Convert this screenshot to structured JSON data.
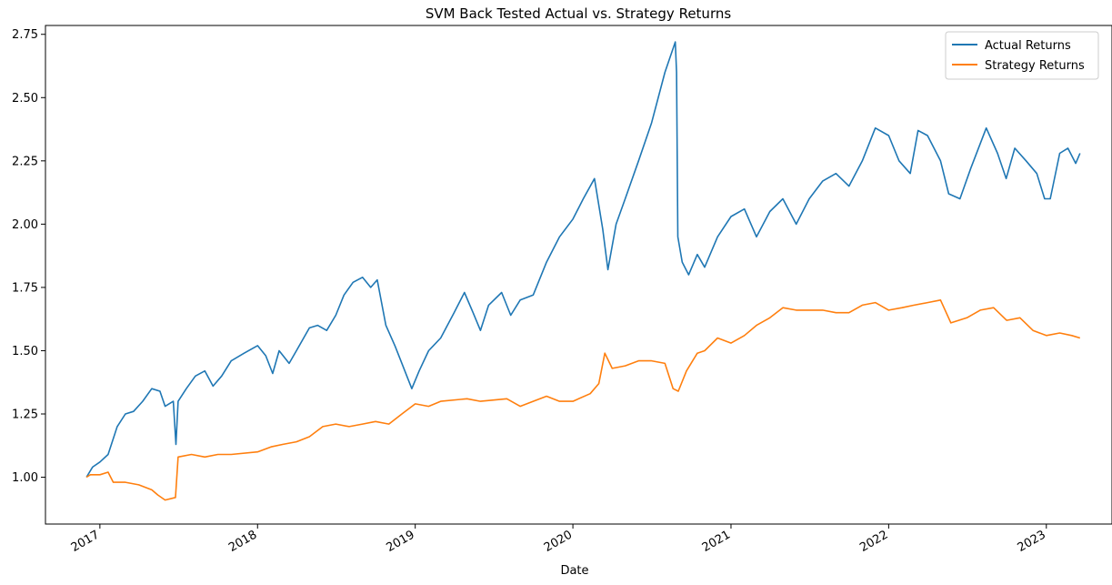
{
  "chart_data": {
    "type": "line",
    "title": "SVM Back Tested Actual vs. Strategy Returns",
    "xlabel": "Date",
    "ylabel": "",
    "xlim": [
      "2016-08-28",
      "2023-06-02"
    ],
    "ylim": [
      0.815,
      2.785
    ],
    "x_tick_labels": [
      "2017",
      "2018",
      "2019",
      "2020",
      "2021",
      "2022",
      "2023"
    ],
    "x_tick_dates": [
      "2017-01-01",
      "2018-01-01",
      "2019-01-01",
      "2020-01-01",
      "2021-01-01",
      "2022-01-01",
      "2023-01-01"
    ],
    "y_ticks": [
      1.0,
      1.25,
      1.5,
      1.75,
      2.0,
      2.25,
      2.5,
      2.75
    ],
    "y_tick_labels": [
      "1.00",
      "1.25",
      "1.50",
      "1.75",
      "2.00",
      "2.25",
      "2.50",
      "2.75"
    ],
    "grid": false,
    "legend_position": "top-right",
    "colors": {
      "actual": "#1f77b4",
      "strategy": "#ff7f0e"
    },
    "series": [
      {
        "name": "Actual Returns",
        "points": [
          [
            "2016-12-01",
            1.0
          ],
          [
            "2016-12-15",
            1.04
          ],
          [
            "2017-01-01",
            1.06
          ],
          [
            "2017-01-20",
            1.09
          ],
          [
            "2017-02-10",
            1.2
          ],
          [
            "2017-03-01",
            1.25
          ],
          [
            "2017-03-20",
            1.26
          ],
          [
            "2017-04-10",
            1.3
          ],
          [
            "2017-05-01",
            1.35
          ],
          [
            "2017-05-20",
            1.34
          ],
          [
            "2017-06-01",
            1.28
          ],
          [
            "2017-06-20",
            1.3
          ],
          [
            "2017-06-26",
            1.13
          ],
          [
            "2017-07-01",
            1.3
          ],
          [
            "2017-07-20",
            1.35
          ],
          [
            "2017-08-10",
            1.4
          ],
          [
            "2017-09-01",
            1.42
          ],
          [
            "2017-09-20",
            1.36
          ],
          [
            "2017-10-10",
            1.4
          ],
          [
            "2017-11-01",
            1.46
          ],
          [
            "2017-12-01",
            1.49
          ],
          [
            "2018-01-01",
            1.52
          ],
          [
            "2018-01-20",
            1.48
          ],
          [
            "2018-02-05",
            1.41
          ],
          [
            "2018-02-20",
            1.5
          ],
          [
            "2018-03-15",
            1.45
          ],
          [
            "2018-04-01",
            1.5
          ],
          [
            "2018-05-01",
            1.59
          ],
          [
            "2018-05-20",
            1.6
          ],
          [
            "2018-06-10",
            1.58
          ],
          [
            "2018-07-01",
            1.64
          ],
          [
            "2018-07-20",
            1.72
          ],
          [
            "2018-08-10",
            1.77
          ],
          [
            "2018-09-01",
            1.79
          ],
          [
            "2018-09-20",
            1.75
          ],
          [
            "2018-10-05",
            1.78
          ],
          [
            "2018-10-25",
            1.6
          ],
          [
            "2018-11-15",
            1.52
          ],
          [
            "2018-12-01",
            1.45
          ],
          [
            "2018-12-24",
            1.35
          ],
          [
            "2019-01-10",
            1.42
          ],
          [
            "2019-02-01",
            1.5
          ],
          [
            "2019-03-01",
            1.55
          ],
          [
            "2019-04-01",
            1.65
          ],
          [
            "2019-04-25",
            1.73
          ],
          [
            "2019-05-15",
            1.65
          ],
          [
            "2019-06-01",
            1.58
          ],
          [
            "2019-06-20",
            1.68
          ],
          [
            "2019-07-20",
            1.73
          ],
          [
            "2019-08-10",
            1.64
          ],
          [
            "2019-09-01",
            1.7
          ],
          [
            "2019-10-01",
            1.72
          ],
          [
            "2019-11-01",
            1.85
          ],
          [
            "2019-12-01",
            1.95
          ],
          [
            "2020-01-01",
            2.02
          ],
          [
            "2020-01-25",
            2.1
          ],
          [
            "2020-02-20",
            2.18
          ],
          [
            "2020-03-10",
            1.98
          ],
          [
            "2020-03-22",
            1.82
          ],
          [
            "2020-04-10",
            2.0
          ],
          [
            "2020-05-01",
            2.1
          ],
          [
            "2020-06-01",
            2.25
          ],
          [
            "2020-07-01",
            2.4
          ],
          [
            "2020-08-01",
            2.6
          ],
          [
            "2020-08-25",
            2.72
          ],
          [
            "2020-08-28",
            2.6
          ],
          [
            "2020-08-31",
            1.95
          ],
          [
            "2020-09-10",
            1.85
          ],
          [
            "2020-09-25",
            1.8
          ],
          [
            "2020-10-15",
            1.88
          ],
          [
            "2020-11-01",
            1.83
          ],
          [
            "2020-12-01",
            1.95
          ],
          [
            "2021-01-01",
            2.03
          ],
          [
            "2021-02-01",
            2.06
          ],
          [
            "2021-03-01",
            1.95
          ],
          [
            "2021-04-01",
            2.05
          ],
          [
            "2021-05-01",
            2.1
          ],
          [
            "2021-06-01",
            2.0
          ],
          [
            "2021-07-01",
            2.1
          ],
          [
            "2021-08-01",
            2.17
          ],
          [
            "2021-09-01",
            2.2
          ],
          [
            "2021-10-01",
            2.15
          ],
          [
            "2021-11-01",
            2.25
          ],
          [
            "2021-12-01",
            2.38
          ],
          [
            "2022-01-01",
            2.35
          ],
          [
            "2022-01-25",
            2.25
          ],
          [
            "2022-02-20",
            2.2
          ],
          [
            "2022-03-10",
            2.37
          ],
          [
            "2022-04-01",
            2.35
          ],
          [
            "2022-05-01",
            2.25
          ],
          [
            "2022-05-20",
            2.12
          ],
          [
            "2022-06-15",
            2.1
          ],
          [
            "2022-07-10",
            2.22
          ],
          [
            "2022-08-15",
            2.38
          ],
          [
            "2022-09-10",
            2.28
          ],
          [
            "2022-09-30",
            2.18
          ],
          [
            "2022-10-20",
            2.3
          ],
          [
            "2022-11-15",
            2.25
          ],
          [
            "2022-12-10",
            2.2
          ],
          [
            "2022-12-28",
            2.1
          ],
          [
            "2023-01-10",
            2.1
          ],
          [
            "2023-02-01",
            2.28
          ],
          [
            "2023-02-20",
            2.3
          ],
          [
            "2023-03-10",
            2.24
          ],
          [
            "2023-03-20",
            2.28
          ]
        ]
      },
      {
        "name": "Strategy Returns",
        "points": [
          [
            "2016-12-01",
            1.0
          ],
          [
            "2016-12-10",
            1.01
          ],
          [
            "2017-01-01",
            1.01
          ],
          [
            "2017-01-20",
            1.02
          ],
          [
            "2017-02-01",
            0.98
          ],
          [
            "2017-03-01",
            0.98
          ],
          [
            "2017-04-01",
            0.97
          ],
          [
            "2017-05-01",
            0.95
          ],
          [
            "2017-05-15",
            0.93
          ],
          [
            "2017-06-01",
            0.91
          ],
          [
            "2017-06-25",
            0.92
          ],
          [
            "2017-07-01",
            1.08
          ],
          [
            "2017-08-01",
            1.09
          ],
          [
            "2017-09-01",
            1.08
          ],
          [
            "2017-10-01",
            1.09
          ],
          [
            "2017-11-01",
            1.09
          ],
          [
            "2018-01-01",
            1.1
          ],
          [
            "2018-02-01",
            1.12
          ],
          [
            "2018-03-01",
            1.13
          ],
          [
            "2018-04-01",
            1.14
          ],
          [
            "2018-05-01",
            1.16
          ],
          [
            "2018-06-01",
            1.2
          ],
          [
            "2018-07-01",
            1.21
          ],
          [
            "2018-08-01",
            1.2
          ],
          [
            "2018-09-01",
            1.21
          ],
          [
            "2018-10-01",
            1.22
          ],
          [
            "2018-11-01",
            1.21
          ],
          [
            "2018-12-01",
            1.25
          ],
          [
            "2019-01-01",
            1.29
          ],
          [
            "2019-02-01",
            1.28
          ],
          [
            "2019-03-01",
            1.3
          ],
          [
            "2019-05-01",
            1.31
          ],
          [
            "2019-06-01",
            1.3
          ],
          [
            "2019-08-01",
            1.31
          ],
          [
            "2019-09-01",
            1.28
          ],
          [
            "2019-10-01",
            1.3
          ],
          [
            "2019-11-01",
            1.32
          ],
          [
            "2019-12-01",
            1.3
          ],
          [
            "2020-01-01",
            1.3
          ],
          [
            "2020-02-10",
            1.33
          ],
          [
            "2020-03-01",
            1.37
          ],
          [
            "2020-03-15",
            1.49
          ],
          [
            "2020-04-01",
            1.43
          ],
          [
            "2020-05-01",
            1.44
          ],
          [
            "2020-06-01",
            1.46
          ],
          [
            "2020-07-01",
            1.46
          ],
          [
            "2020-08-01",
            1.45
          ],
          [
            "2020-08-20",
            1.35
          ],
          [
            "2020-09-01",
            1.34
          ],
          [
            "2020-09-20",
            1.42
          ],
          [
            "2020-10-15",
            1.49
          ],
          [
            "2020-11-01",
            1.5
          ],
          [
            "2020-12-01",
            1.55
          ],
          [
            "2021-01-01",
            1.53
          ],
          [
            "2021-02-01",
            1.56
          ],
          [
            "2021-03-01",
            1.6
          ],
          [
            "2021-04-01",
            1.63
          ],
          [
            "2021-05-01",
            1.67
          ],
          [
            "2021-06-01",
            1.66
          ],
          [
            "2021-08-01",
            1.66
          ],
          [
            "2021-09-01",
            1.65
          ],
          [
            "2021-10-01",
            1.65
          ],
          [
            "2021-11-01",
            1.68
          ],
          [
            "2021-12-01",
            1.69
          ],
          [
            "2022-01-01",
            1.66
          ],
          [
            "2022-02-01",
            1.67
          ],
          [
            "2022-03-01",
            1.68
          ],
          [
            "2022-04-01",
            1.69
          ],
          [
            "2022-05-01",
            1.7
          ],
          [
            "2022-05-25",
            1.61
          ],
          [
            "2022-07-01",
            1.63
          ],
          [
            "2022-08-01",
            1.66
          ],
          [
            "2022-09-01",
            1.67
          ],
          [
            "2022-10-01",
            1.62
          ],
          [
            "2022-11-01",
            1.63
          ],
          [
            "2022-12-01",
            1.58
          ],
          [
            "2023-01-01",
            1.56
          ],
          [
            "2023-02-01",
            1.57
          ],
          [
            "2023-03-01",
            1.56
          ],
          [
            "2023-03-20",
            1.55
          ]
        ]
      }
    ]
  }
}
